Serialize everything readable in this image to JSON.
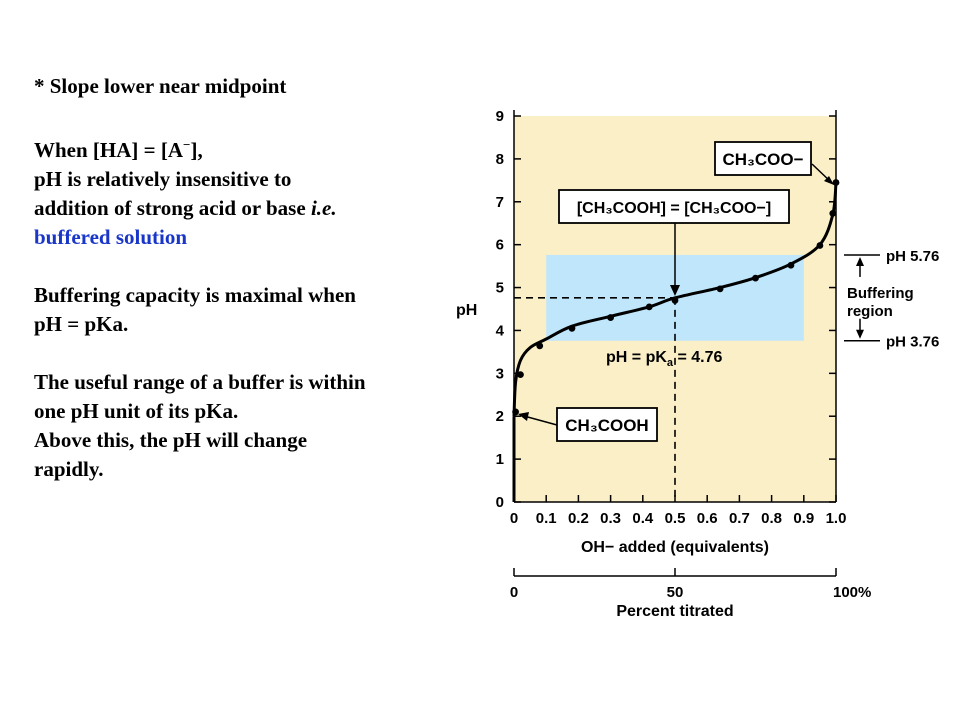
{
  "notes": {
    "line1": "* Slope lower near midpoint",
    "line2": "When [HA] = [A",
    "line2_sup": "−",
    "line2_end": "],",
    "line3": "pH is relatively insensitive to",
    "line4": "addition of strong acid or base ",
    "line4_it": "i.e.",
    "line5": "buffered solution",
    "line6": "Buffering capacity is maximal when",
    "line7": "pH = pKa.",
    "line8": "The useful range of a buffer is within",
    "line9": "one pH unit of its pKa.",
    "line10": "Above this, the pH will change",
    "line11": "rapidly.",
    "highlight_color": "#1a36c9"
  },
  "chart_data": {
    "type": "line",
    "xlabel": "OH− added (equivalents)",
    "ylabel": "pH",
    "xlim": [
      0,
      1.0
    ],
    "ylim": [
      0,
      9
    ],
    "x_ticks": [
      "0",
      "0.1",
      "0.2",
      "0.3",
      "0.4",
      "0.5",
      "0.6",
      "0.7",
      "0.8",
      "0.9",
      "1.0"
    ],
    "y_ticks": [
      "0",
      "1",
      "2",
      "3",
      "4",
      "5",
      "6",
      "7",
      "8",
      "9"
    ],
    "secondary_axis": {
      "label": "Percent titrated",
      "ticks": [
        "0",
        "50",
        "100%"
      ]
    },
    "series": [
      {
        "x": [
          0.0,
          0.005,
          0.02,
          0.05,
          0.1,
          0.18,
          0.3,
          0.42,
          0.5,
          0.64,
          0.75,
          0.86,
          0.95,
          0.99,
          1.0
        ],
        "y": [
          2.0,
          2.8,
          3.3,
          3.6,
          3.8,
          4.1,
          4.33,
          4.55,
          4.76,
          5.0,
          5.23,
          5.55,
          6.0,
          6.7,
          7.45
        ]
      }
    ],
    "points": {
      "x": [
        0.005,
        0.02,
        0.08,
        0.18,
        0.3,
        0.42,
        0.5,
        0.64,
        0.75,
        0.86,
        0.95,
        0.99,
        1.0
      ],
      "y": [
        2.1,
        2.97,
        3.64,
        4.05,
        4.3,
        4.55,
        4.7,
        4.97,
        5.22,
        5.52,
        5.98,
        6.73,
        7.45
      ]
    },
    "buffer_region": {
      "x": [
        0.1,
        0.9
      ],
      "y": [
        3.76,
        5.76
      ],
      "color": "#bfe6fa"
    },
    "background_color": "#fbefc7",
    "dashed_midpoint": {
      "x": 0.5,
      "y": 4.76
    },
    "annotations": {
      "acetate": "CH₃COO−",
      "equal": "[CH₃COOH] = [CH₃COO−]",
      "acid": "CH₃COOH",
      "pka_text": "pH = pK",
      "pka_sub": "a",
      "pka_value": " = 4.76",
      "ph_high": "pH 5.76",
      "buffering": "Buffering",
      "region": "region",
      "ph_low": "pH 3.76"
    }
  }
}
